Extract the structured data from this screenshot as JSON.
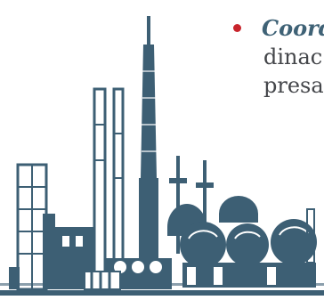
{
  "slide": {
    "bullet_term": "Coord",
    "line2": "dinac",
    "line3": "presa"
  },
  "colors": {
    "bullet": "#c8242c",
    "term": "#3f6276",
    "body_text": "#44464a",
    "illustration": "#3d5f74"
  },
  "illustration": {
    "icon": "refinery-plant-illustration"
  }
}
